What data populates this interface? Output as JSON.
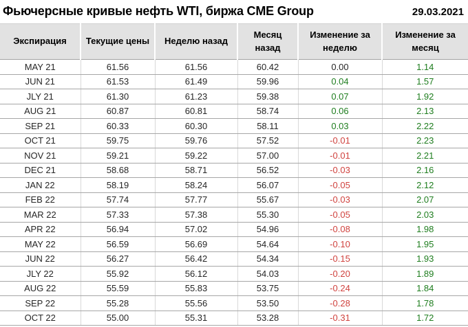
{
  "header": {
    "title": "Фьючерсные кривые нефть WTI, биржа CME Group",
    "date": "29.03.2021"
  },
  "table": {
    "columns": [
      "Экспирация",
      "Текущие цены",
      "Неделю назад",
      "Месяц назад",
      "Изменение за неделю",
      "Изменение за месяц"
    ],
    "rows": [
      [
        "MAY 21",
        "61.56",
        "61.56",
        "60.42",
        "0.00",
        "1.14"
      ],
      [
        "JUN 21",
        "61.53",
        "61.49",
        "59.96",
        "0.04",
        "1.57"
      ],
      [
        "JLY 21",
        "61.30",
        "61.23",
        "59.38",
        "0.07",
        "1.92"
      ],
      [
        "AUG 21",
        "60.87",
        "60.81",
        "58.74",
        "0.06",
        "2.13"
      ],
      [
        "SEP 21",
        "60.33",
        "60.30",
        "58.11",
        "0.03",
        "2.22"
      ],
      [
        "OCT 21",
        "59.75",
        "59.76",
        "57.52",
        "-0.01",
        "2.23"
      ],
      [
        "NOV 21",
        "59.21",
        "59.22",
        "57.00",
        "-0.01",
        "2.21"
      ],
      [
        "DEC 21",
        "58.68",
        "58.71",
        "56.52",
        "-0.03",
        "2.16"
      ],
      [
        "JAN 22",
        "58.19",
        "58.24",
        "56.07",
        "-0.05",
        "2.12"
      ],
      [
        "FEB 22",
        "57.74",
        "57.77",
        "55.67",
        "-0.03",
        "2.07"
      ],
      [
        "MAR 22",
        "57.33",
        "57.38",
        "55.30",
        "-0.05",
        "2.03"
      ],
      [
        "APR 22",
        "56.94",
        "57.02",
        "54.96",
        "-0.08",
        "1.98"
      ],
      [
        "MAY 22",
        "56.59",
        "56.69",
        "54.64",
        "-0.10",
        "1.95"
      ],
      [
        "JUN 22",
        "56.27",
        "56.42",
        "54.34",
        "-0.15",
        "1.93"
      ],
      [
        "JLY 22",
        "55.92",
        "56.12",
        "54.03",
        "-0.20",
        "1.89"
      ],
      [
        "AUG 22",
        "55.59",
        "55.83",
        "53.75",
        "-0.24",
        "1.84"
      ],
      [
        "SEP 22",
        "55.28",
        "55.56",
        "53.50",
        "-0.28",
        "1.78"
      ],
      [
        "OCT 22",
        "55.00",
        "55.31",
        "53.28",
        "-0.31",
        "1.72"
      ]
    ]
  },
  "colors": {
    "positive": "#1e7d1e",
    "negative": "#d0423e",
    "header_bg": "#e2e2e2"
  }
}
